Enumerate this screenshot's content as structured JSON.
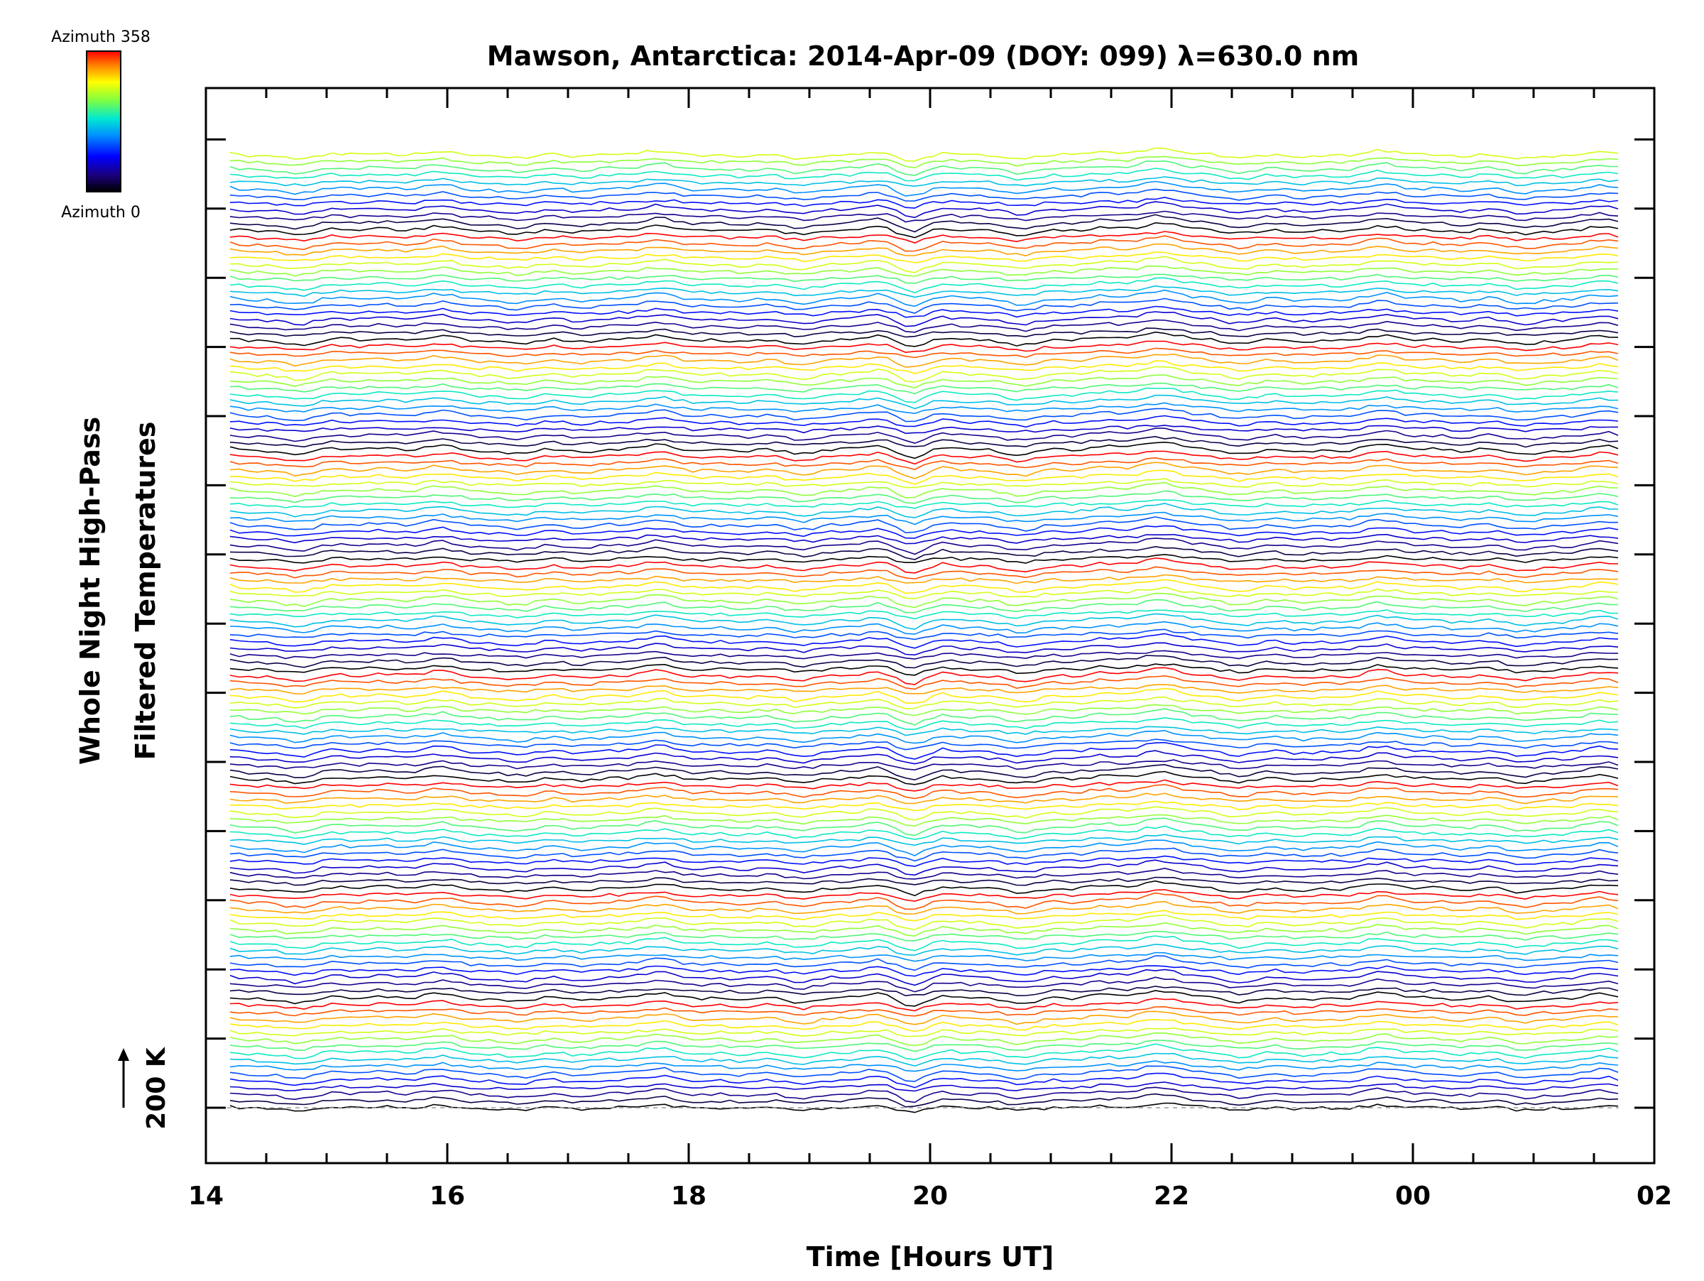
{
  "chart_data": {
    "type": "line",
    "title": "Mawson, Antarctica: 2014-Apr-09 (DOY: 099) λ=630.0 nm",
    "xlabel": "Time [Hours UT]",
    "ylabel_line1": "Whole Night High-Pass",
    "ylabel_line2": "Filtered Temperatures",
    "scale_bar_label": "200 K",
    "colorbar": {
      "top_label": "Azimuth 358",
      "bottom_label": "Azimuth 0",
      "colors": [
        "#ff0000",
        "#ff7f00",
        "#ffff00",
        "#7fff00",
        "#00ff7f",
        "#00ffff",
        "#0080ff",
        "#0000ff",
        "#00007f",
        "#000000"
      ]
    },
    "x_ticks": [
      {
        "hours": 14,
        "label": "14"
      },
      {
        "hours": 16,
        "label": "16"
      },
      {
        "hours": 18,
        "label": "18"
      },
      {
        "hours": 20,
        "label": "20"
      },
      {
        "hours": 22,
        "label": "22"
      },
      {
        "hours": 24,
        "label": "00"
      },
      {
        "hours": 26,
        "label": "02"
      }
    ],
    "xlim_hours": [
      14,
      26
    ],
    "data_range_hours": [
      14.2,
      25.7
    ],
    "series_count": 140,
    "zones": 9,
    "note_none": ""
  }
}
